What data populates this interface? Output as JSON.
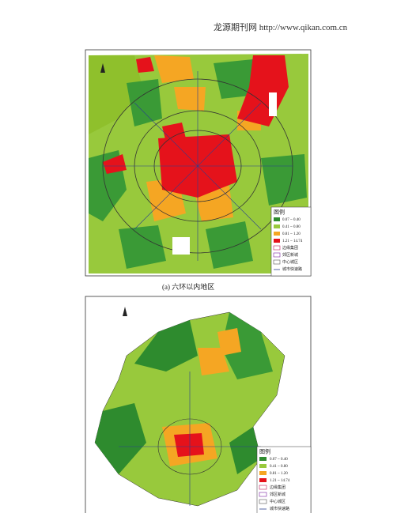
{
  "header": {
    "text": "龙源期刊网 http://www.qikan.com.cn"
  },
  "figure_a": {
    "caption": "(a) 六环以内地区",
    "legend": {
      "title": "图例",
      "items": [
        "0.07 ~ 0.40",
        "0.41 ~ 0.80",
        "0.81 ~ 1.20",
        "1.21 ~ 14.74",
        "边缘集团",
        "郊区新城",
        "中心城区",
        "城市快速路"
      ]
    }
  },
  "figure_b": {
    "legend": {
      "title": "图例",
      "items": [
        "0.07 ~ 0.40",
        "0.41 ~ 0.80",
        "0.81 ~ 1.20",
        "1.21 ~ 14.74",
        "边缘集团",
        "郊区新城",
        "中心城区",
        "城市快速路"
      ]
    }
  }
}
